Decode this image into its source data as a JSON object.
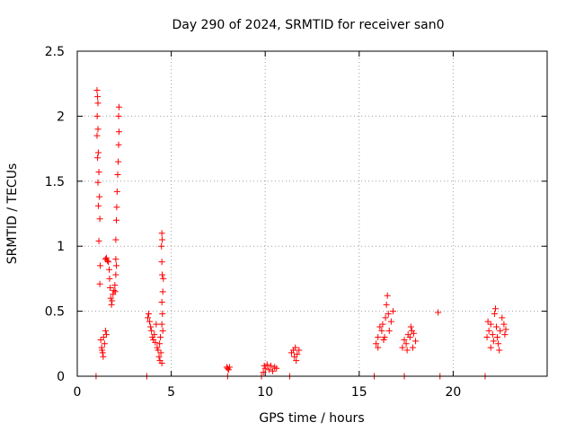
{
  "chart_data": {
    "type": "scatter",
    "title": "Day 290 of 2024, SRMTID for receiver san0",
    "xlabel": "GPS time / hours",
    "ylabel": "SRMTID / TECUs",
    "xlim": [
      0,
      25
    ],
    "ylim": [
      0,
      2.5
    ],
    "xticks": [
      0,
      5,
      10,
      15,
      20
    ],
    "xtick_labels": [
      "0",
      "5",
      "10",
      "15",
      "20"
    ],
    "yticks": [
      0,
      0.5,
      1,
      1.5,
      2,
      2.5
    ],
    "ytick_labels": [
      "0",
      "0.5",
      "1",
      "1.5",
      "2",
      "2.5"
    ],
    "grid": true,
    "marker": "+",
    "color": "#ff0000",
    "series": [
      {
        "name": "SRMTID",
        "points": [
          [
            1.0,
            0.0
          ],
          [
            3.7,
            0.0
          ],
          [
            8.0,
            0.0
          ],
          [
            9.8,
            0.0
          ],
          [
            11.3,
            0.0
          ],
          [
            15.8,
            0.0
          ],
          [
            17.4,
            0.0
          ],
          [
            19.3,
            0.0
          ],
          [
            21.7,
            0.0
          ],
          [
            1.05,
            2.2
          ],
          [
            1.08,
            2.15
          ],
          [
            1.1,
            2.1
          ],
          [
            1.06,
            2.0
          ],
          [
            1.1,
            1.9
          ],
          [
            1.05,
            1.85
          ],
          [
            1.12,
            1.72
          ],
          [
            1.08,
            1.68
          ],
          [
            1.15,
            1.57
          ],
          [
            1.1,
            1.49
          ],
          [
            1.18,
            1.38
          ],
          [
            1.12,
            1.31
          ],
          [
            1.2,
            1.21
          ],
          [
            1.15,
            1.04
          ],
          [
            1.22,
            0.85
          ],
          [
            1.2,
            0.71
          ],
          [
            1.25,
            0.28
          ],
          [
            1.3,
            0.22
          ],
          [
            1.35,
            0.18
          ],
          [
            1.4,
            0.3
          ],
          [
            1.45,
            0.25
          ],
          [
            1.5,
            0.35
          ],
          [
            1.38,
            0.15
          ],
          [
            1.55,
            0.32
          ],
          [
            1.32,
            0.2
          ],
          [
            1.5,
            0.9
          ],
          [
            1.55,
            0.91
          ],
          [
            1.6,
            0.89
          ],
          [
            1.65,
            0.88
          ],
          [
            1.7,
            0.82
          ],
          [
            1.72,
            0.75
          ],
          [
            1.75,
            0.68
          ],
          [
            1.78,
            0.6
          ],
          [
            1.82,
            0.55
          ],
          [
            1.85,
            0.58
          ],
          [
            1.9,
            0.63
          ],
          [
            1.95,
            0.66
          ],
          [
            2.0,
            0.7
          ],
          [
            2.02,
            0.65
          ],
          [
            2.05,
            0.9
          ],
          [
            2.05,
            1.05
          ],
          [
            2.08,
            1.2
          ],
          [
            2.1,
            1.3
          ],
          [
            2.12,
            1.42
          ],
          [
            2.15,
            1.55
          ],
          [
            2.18,
            1.65
          ],
          [
            2.2,
            1.78
          ],
          [
            2.22,
            1.88
          ],
          [
            2.2,
            2.0
          ],
          [
            2.22,
            2.07
          ],
          [
            2.05,
            0.78
          ],
          [
            2.08,
            0.85
          ],
          [
            3.8,
            0.48
          ],
          [
            3.85,
            0.42
          ],
          [
            3.9,
            0.38
          ],
          [
            3.95,
            0.35
          ],
          [
            4.0,
            0.3
          ],
          [
            4.05,
            0.28
          ],
          [
            4.1,
            0.32
          ],
          [
            4.15,
            0.26
          ],
          [
            4.2,
            0.4
          ],
          [
            3.75,
            0.45
          ],
          [
            4.25,
            0.22
          ],
          [
            4.3,
            0.2
          ],
          [
            4.35,
            0.15
          ],
          [
            4.4,
            0.12
          ],
          [
            4.45,
            0.18
          ],
          [
            4.5,
            0.1
          ],
          [
            4.38,
            0.25
          ],
          [
            4.42,
            0.3
          ],
          [
            4.5,
            1.1
          ],
          [
            4.52,
            1.05
          ],
          [
            4.48,
            1.0
          ],
          [
            4.5,
            0.88
          ],
          [
            4.52,
            0.78
          ],
          [
            4.55,
            0.65
          ],
          [
            4.5,
            0.57
          ],
          [
            4.53,
            0.48
          ],
          [
            4.5,
            0.4
          ],
          [
            4.55,
            0.35
          ],
          [
            4.58,
            0.75
          ],
          [
            7.95,
            0.07
          ],
          [
            8.0,
            0.06
          ],
          [
            8.05,
            0.05
          ],
          [
            8.1,
            0.07
          ],
          [
            9.9,
            0.03
          ],
          [
            10.0,
            0.06
          ],
          [
            10.1,
            0.09
          ],
          [
            10.2,
            0.05
          ],
          [
            10.3,
            0.08
          ],
          [
            10.4,
            0.04
          ],
          [
            10.5,
            0.07
          ],
          [
            10.6,
            0.06
          ],
          [
            9.95,
            0.08
          ],
          [
            11.4,
            0.18
          ],
          [
            11.5,
            0.2
          ],
          [
            11.55,
            0.15
          ],
          [
            11.6,
            0.22
          ],
          [
            11.7,
            0.17
          ],
          [
            11.8,
            0.2
          ],
          [
            11.65,
            0.12
          ],
          [
            15.9,
            0.25
          ],
          [
            16.0,
            0.3
          ],
          [
            16.1,
            0.38
          ],
          [
            16.2,
            0.35
          ],
          [
            16.3,
            0.28
          ],
          [
            16.4,
            0.45
          ],
          [
            16.45,
            0.55
          ],
          [
            16.5,
            0.62
          ],
          [
            16.55,
            0.48
          ],
          [
            16.6,
            0.35
          ],
          [
            16.7,
            0.42
          ],
          [
            16.8,
            0.5
          ],
          [
            16.0,
            0.22
          ],
          [
            16.25,
            0.4
          ],
          [
            16.35,
            0.3
          ],
          [
            17.3,
            0.22
          ],
          [
            17.4,
            0.28
          ],
          [
            17.5,
            0.25
          ],
          [
            17.6,
            0.32
          ],
          [
            17.7,
            0.3
          ],
          [
            17.8,
            0.35
          ],
          [
            17.9,
            0.33
          ],
          [
            18.0,
            0.27
          ],
          [
            17.55,
            0.2
          ],
          [
            17.75,
            0.38
          ],
          [
            17.85,
            0.22
          ],
          [
            19.2,
            0.49
          ],
          [
            21.8,
            0.3
          ],
          [
            21.9,
            0.35
          ],
          [
            22.0,
            0.4
          ],
          [
            22.1,
            0.32
          ],
          [
            22.2,
            0.48
          ],
          [
            22.25,
            0.52
          ],
          [
            22.3,
            0.38
          ],
          [
            22.35,
            0.3
          ],
          [
            22.4,
            0.25
          ],
          [
            22.5,
            0.35
          ],
          [
            22.6,
            0.45
          ],
          [
            22.7,
            0.4
          ],
          [
            22.75,
            0.32
          ],
          [
            22.8,
            0.36
          ],
          [
            22.0,
            0.22
          ],
          [
            22.15,
            0.27
          ],
          [
            22.45,
            0.2
          ],
          [
            21.85,
            0.42
          ]
        ]
      }
    ]
  }
}
